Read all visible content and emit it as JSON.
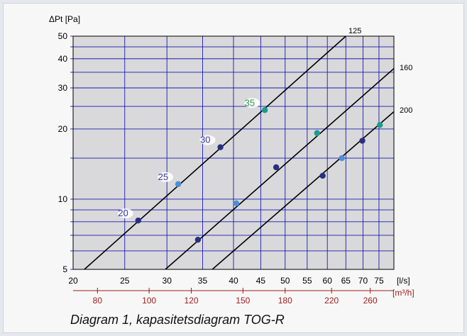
{
  "caption": "Diagram 1, kapasitetsdiagram TOG-R",
  "chart_data": {
    "type": "line",
    "ylabel": "ΔPt [Pa]",
    "x_unit_ls": "[l/s]",
    "x_unit_m3h": "[m³/h]",
    "yscale": "log",
    "xscale": "log",
    "ylim": [
      5,
      50
    ],
    "xlim": [
      20,
      80
    ],
    "yticks": [
      5,
      10,
      20,
      30,
      40,
      50
    ],
    "xticks_ls": [
      20,
      25,
      30,
      35,
      40,
      45,
      50,
      55,
      60,
      65,
      70,
      75
    ],
    "xticks_m3h": [
      80,
      100,
      120,
      150,
      180,
      220,
      260
    ],
    "grid": true,
    "colors": {
      "plot_bg": "#d9d9dc",
      "grid": "#1a1aa8",
      "line": "#000000",
      "m3h_axis": "#9b1c1c",
      "dot_dark": "#27307f",
      "dot_light": "#4b8fd6",
      "dot_teal": "#1c9b8e",
      "label_blue": "#3a3aa0",
      "label_green": "#2f9a4a"
    },
    "series": [
      {
        "name": "125",
        "line": [
          [
            21,
            5
          ],
          [
            65,
            50
          ]
        ],
        "points": [
          {
            "x": 26.5,
            "y": 8.1,
            "label": "20",
            "color": "dot_dark",
            "label_color": "label_blue"
          },
          {
            "x": 31.5,
            "y": 11.6,
            "label": "25",
            "color": "dot_light",
            "label_color": "label_blue"
          },
          {
            "x": 37.8,
            "y": 16.7,
            "label": "30",
            "color": "dot_dark",
            "label_color": "label_blue"
          },
          {
            "x": 45.8,
            "y": 24.1,
            "label": "35",
            "color": "dot_teal",
            "label_color": "label_green"
          }
        ]
      },
      {
        "name": "160",
        "line": [
          [
            29.8,
            5
          ],
          [
            81.5,
            37.7
          ]
        ],
        "points": [
          {
            "x": 34.3,
            "y": 6.7,
            "color": "dot_dark"
          },
          {
            "x": 40.5,
            "y": 9.6,
            "color": "dot_light"
          },
          {
            "x": 48.1,
            "y": 13.7,
            "color": "dot_dark"
          },
          {
            "x": 57.4,
            "y": 19.2,
            "color": "dot_teal"
          }
        ]
      },
      {
        "name": "200",
        "line": [
          [
            36.5,
            5
          ],
          [
            81.5,
            24.6
          ]
        ],
        "points": [
          {
            "x": 58.8,
            "y": 12.6,
            "color": "dot_dark"
          },
          {
            "x": 63.9,
            "y": 15.0,
            "color": "dot_light"
          },
          {
            "x": 69.8,
            "y": 17.8,
            "color": "dot_dark"
          },
          {
            "x": 75.3,
            "y": 20.8,
            "color": "dot_teal"
          }
        ]
      }
    ]
  }
}
